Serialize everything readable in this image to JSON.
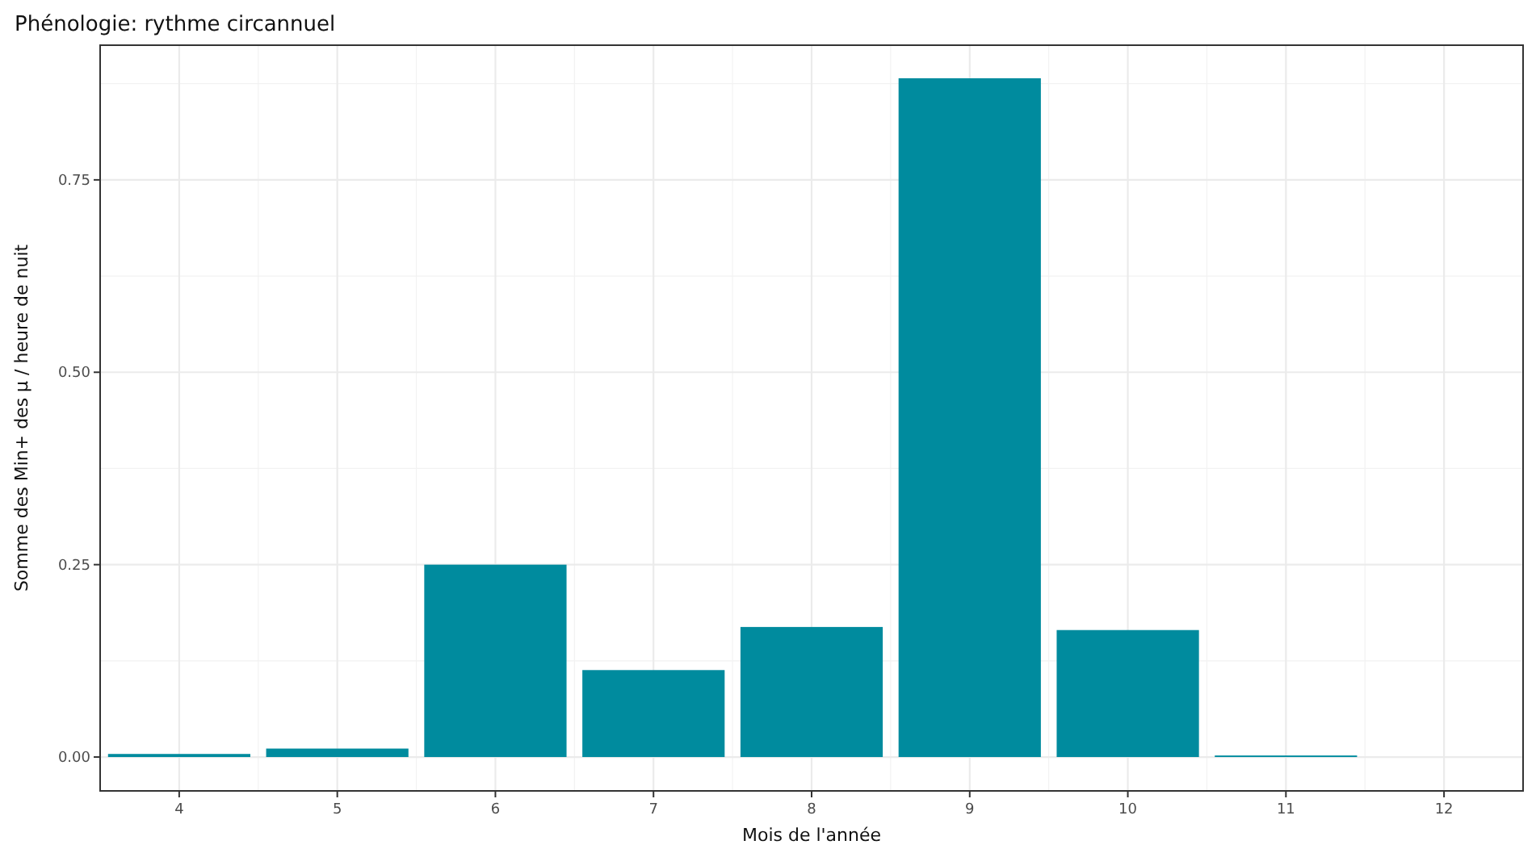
{
  "chart_data": {
    "type": "bar",
    "title": "Phénologie: rythme circannuel",
    "xlabel": "Mois de l'année",
    "ylabel": "Somme des Min+ des µ / heure de nuit",
    "x": [
      4,
      5,
      6,
      7,
      8,
      9,
      10,
      11,
      12
    ],
    "values": [
      0.004,
      0.011,
      0.25,
      0.113,
      0.169,
      0.882,
      0.165,
      0.002,
      0
    ],
    "color": "#008b9e",
    "xlim": [
      3.5,
      12.5
    ],
    "xticks": [
      4,
      5,
      6,
      7,
      8,
      9,
      10,
      11,
      12
    ],
    "ylim": [
      -0.044,
      0.925
    ],
    "yticks": [
      {
        "value": 0,
        "label": "0.00"
      },
      {
        "value": 0.25,
        "label": "0.25"
      },
      {
        "value": 0.5,
        "label": "0.50"
      },
      {
        "value": 0.75,
        "label": "0.75"
      }
    ],
    "grid": true
  }
}
